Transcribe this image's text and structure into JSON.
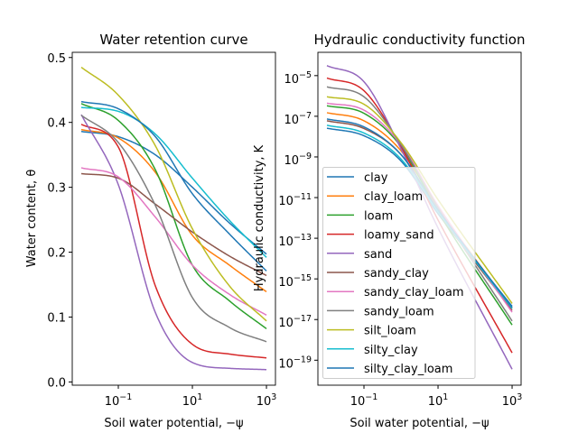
{
  "chart_data": [
    {
      "type": "line",
      "title": "Water retention curve",
      "xlabel": "Soil water potential, −ψ",
      "ylabel": "Water content, θ",
      "xscale": "log",
      "xlim": [
        0.0057,
        1750
      ],
      "ylim": [
        -0.005,
        0.508
      ],
      "grid": false,
      "x_ticks": [
        {
          "base": "10",
          "exp": "−1",
          "value": 0.1
        },
        {
          "base": "10",
          "exp": "1",
          "value": 10
        },
        {
          "base": "10",
          "exp": "3",
          "value": 1000
        }
      ],
      "y_ticks": [
        {
          "label": "0.0",
          "value": 0.0
        },
        {
          "label": "0.1",
          "value": 0.1
        },
        {
          "label": "0.2",
          "value": 0.2
        },
        {
          "label": "0.3",
          "value": 0.3
        },
        {
          "label": "0.4",
          "value": 0.4
        },
        {
          "label": "0.5",
          "value": 0.5
        }
      ],
      "x": [
        0.01,
        0.1,
        1,
        10,
        100,
        1000
      ],
      "series": [
        {
          "name": "clay",
          "color": "#1f77b4",
          "values": [
            0.386,
            0.378,
            0.35,
            0.3,
            0.245,
            0.197
          ]
        },
        {
          "name": "clay_loam",
          "color": "#ff7f0e",
          "values": [
            0.389,
            0.376,
            0.323,
            0.226,
            0.18,
            0.139
          ]
        },
        {
          "name": "loam",
          "color": "#2ca02c",
          "values": [
            0.429,
            0.403,
            0.327,
            0.18,
            0.125,
            0.082
          ]
        },
        {
          "name": "loamy_sand",
          "color": "#d62728",
          "values": [
            0.397,
            0.362,
            0.148,
            0.058,
            0.043,
            0.037
          ]
        },
        {
          "name": "sand",
          "color": "#9467bd",
          "values": [
            0.412,
            0.304,
            0.107,
            0.03,
            0.021,
            0.019
          ]
        },
        {
          "name": "sandy_clay",
          "color": "#8c564b",
          "values": [
            0.321,
            0.314,
            0.274,
            0.231,
            0.194,
            0.164
          ]
        },
        {
          "name": "sandy_clay_loam",
          "color": "#e377c2",
          "values": [
            0.33,
            0.316,
            0.254,
            0.18,
            0.135,
            0.103
          ]
        },
        {
          "name": "sandy_loam",
          "color": "#7f7f7f",
          "values": [
            0.411,
            0.369,
            0.272,
            0.13,
            0.084,
            0.062
          ]
        },
        {
          "name": "silt_loam",
          "color": "#bcbd22",
          "values": [
            0.485,
            0.442,
            0.364,
            0.236,
            0.148,
            0.094
          ]
        },
        {
          "name": "silty_clay",
          "color": "#17becf",
          "values": [
            0.423,
            0.417,
            0.382,
            0.314,
            0.249,
            0.192
          ]
        },
        {
          "name": "silty_clay_loam",
          "color": "#1f77b4",
          "values": [
            0.432,
            0.421,
            0.378,
            0.29,
            0.228,
            0.171
          ]
        }
      ]
    },
    {
      "type": "line",
      "title": "Hydraulic conductivity function",
      "xlabel": "Soil water potential, −ψ",
      "ylabel": "Hydraulic conductivity, K",
      "xscale": "log",
      "yscale": "log",
      "xlim": [
        0.0057,
        1750
      ],
      "ylim": [
        5.9e-21,
        0.00014
      ],
      "grid": false,
      "legend_position": "lower-left",
      "x_ticks": [
        {
          "base": "10",
          "exp": "−1",
          "value": 0.1
        },
        {
          "base": "10",
          "exp": "1",
          "value": 10
        },
        {
          "base": "10",
          "exp": "3",
          "value": 1000
        }
      ],
      "y_ticks": [
        {
          "base": "10",
          "exp": "−5",
          "value": 1e-05
        },
        {
          "base": "10",
          "exp": "−7",
          "value": 1e-07
        },
        {
          "base": "10",
          "exp": "−9",
          "value": 1e-09
        },
        {
          "base": "10",
          "exp": "−11",
          "value": 1e-11
        },
        {
          "base": "10",
          "exp": "−13",
          "value": 1e-13
        },
        {
          "base": "10",
          "exp": "−15",
          "value": 1e-15
        },
        {
          "base": "10",
          "exp": "−17",
          "value": 1e-17
        },
        {
          "base": "10",
          "exp": "−19",
          "value": 1e-19
        }
      ],
      "x": [
        0.01,
        0.1,
        1,
        10,
        1000
      ],
      "series": [
        {
          "name": "clay",
          "color": "#1f77b4",
          "values": [
            2.6e-08,
            1.1e-08,
            6.3e-10,
            1.6e-12,
            4.5e-17
          ]
        },
        {
          "name": "clay_loam",
          "color": "#ff7f0e",
          "values": [
            1.5e-07,
            6e-08,
            2e-09,
            3.2e-12,
            3.5e-17
          ]
        },
        {
          "name": "loam",
          "color": "#2ca02c",
          "values": [
            3.3e-07,
            1.4e-07,
            3.2e-09,
            2e-12,
            5.4e-18
          ]
        },
        {
          "name": "loamy_sand",
          "color": "#d62728",
          "values": [
            7.6e-06,
            1.8e-06,
            3.2e-09,
            7.9e-13,
            2.3e-19
          ]
        },
        {
          "name": "sand",
          "color": "#9467bd",
          "values": [
            3.1e-05,
            5e-06,
            2.5e-09,
            3.2e-13,
            3.6e-20
          ]
        },
        {
          "name": "sandy_clay",
          "color": "#8c564b",
          "values": [
            6e-08,
            2.5e-08,
            1.3e-09,
            2e-12,
            2.8e-17
          ]
        },
        {
          "name": "sandy_clay_loam",
          "color": "#e377c2",
          "values": [
            4.4e-07,
            2e-07,
            4e-09,
            4e-12,
            2.3e-17
          ]
        },
        {
          "name": "sandy_loam",
          "color": "#7f7f7f",
          "values": [
            2.8e-06,
            9.1e-07,
            4e-09,
            3.2e-12,
            8.5e-18
          ]
        },
        {
          "name": "silt_loam",
          "color": "#bcbd22",
          "values": [
            9.1e-07,
            3.9e-07,
            5e-09,
            7.9e-12,
            6.2e-17
          ]
        },
        {
          "name": "silty_clay",
          "color": "#17becf",
          "values": [
            3.6e-08,
            1.5e-08,
            7.9e-10,
            2e-12,
            3.5e-17
          ]
        },
        {
          "name": "silty_clay_loam",
          "color": "#1f77b4",
          "values": [
            7.4e-08,
            3e-08,
            1.3e-09,
            2.5e-12,
            4e-17
          ]
        }
      ]
    }
  ]
}
